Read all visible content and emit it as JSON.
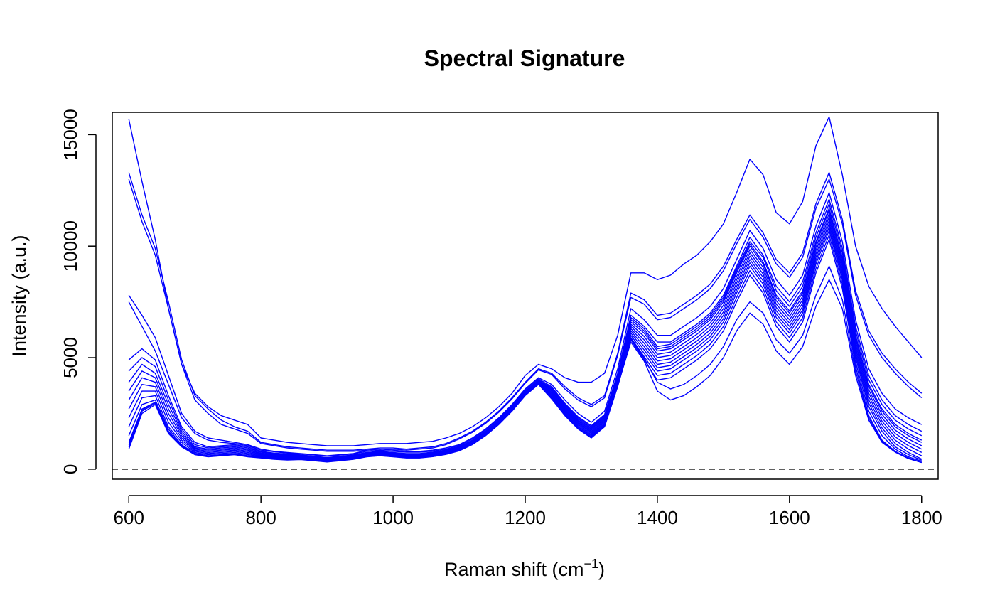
{
  "chart_data": {
    "type": "line",
    "title": "Spectral Signature",
    "xlabel_main": "Raman shift (cm",
    "xlabel_sup": "−1",
    "xlabel_close": ")",
    "ylabel": "Intensity (a.u.)",
    "xlim": [
      575,
      1825
    ],
    "ylim": [
      -450,
      16000
    ],
    "x_ticks": [
      600,
      800,
      1000,
      1200,
      1400,
      1600,
      1800
    ],
    "y_ticks": [
      0,
      5000,
      10000,
      15000
    ],
    "x_tick_labels": [
      "600",
      "800",
      "1000",
      "1200",
      "1400",
      "1600",
      "1800"
    ],
    "y_tick_labels": [
      "0",
      "5000",
      "10000",
      "15000"
    ],
    "reference_line": {
      "y": 0,
      "style": "dashed"
    },
    "line_color": "#0000ff",
    "grid": false,
    "legend": "none",
    "x": [
      600,
      620,
      640,
      660,
      680,
      700,
      720,
      740,
      760,
      780,
      800,
      820,
      840,
      860,
      880,
      900,
      920,
      940,
      960,
      980,
      1000,
      1020,
      1040,
      1060,
      1080,
      1100,
      1120,
      1140,
      1160,
      1180,
      1200,
      1220,
      1240,
      1260,
      1280,
      1300,
      1320,
      1340,
      1360,
      1380,
      1400,
      1420,
      1440,
      1460,
      1480,
      1500,
      1520,
      1540,
      1560,
      1580,
      1600,
      1620,
      1640,
      1660,
      1680,
      1700,
      1720,
      1740,
      1760,
      1780,
      1800
    ],
    "series": [
      {
        "values": [
          15700,
          12900,
          10300,
          7200,
          4700,
          3400,
          2800,
          2400,
          2200,
          2000,
          1400,
          1300,
          1200,
          1150,
          1100,
          1050,
          1050,
          1050,
          1100,
          1150,
          1150,
          1150,
          1200,
          1250,
          1400,
          1600,
          1900,
          2300,
          2800,
          3400,
          4200,
          4700,
          4500,
          4100,
          3900,
          3900,
          4300,
          6000,
          8800,
          8800,
          8500,
          8700,
          9200,
          9600,
          10200,
          11000,
          12400,
          13900,
          13200,
          11500,
          11000,
          12000,
          14500,
          15800,
          13200,
          10000,
          8200,
          7200,
          6400,
          5700,
          5000
        ]
      },
      {
        "values": [
          13300,
          11400,
          9900,
          7500,
          4900,
          3300,
          2700,
          2200,
          1900,
          1700,
          1200,
          1100,
          1000,
          950,
          900,
          850,
          850,
          850,
          900,
          950,
          950,
          900,
          950,
          1000,
          1150,
          1400,
          1700,
          2100,
          2600,
          3200,
          3900,
          4500,
          4300,
          3700,
          3200,
          2900,
          3300,
          5200,
          7900,
          7600,
          6900,
          7000,
          7400,
          7800,
          8300,
          9100,
          10300,
          11400,
          10600,
          9400,
          8800,
          9700,
          11900,
          13300,
          11200,
          8000,
          6200,
          5200,
          4500,
          3900,
          3400
        ]
      },
      {
        "values": [
          13000,
          11100,
          9600,
          7200,
          4700,
          3100,
          2500,
          2000,
          1800,
          1600,
          1150,
          1050,
          950,
          900,
          850,
          800,
          800,
          800,
          850,
          900,
          900,
          850,
          900,
          950,
          1100,
          1350,
          1650,
          2050,
          2550,
          3150,
          3850,
          4450,
          4250,
          3600,
          3100,
          2800,
          3200,
          5100,
          7700,
          7400,
          6700,
          6800,
          7200,
          7600,
          8100,
          8900,
          10100,
          11200,
          10400,
          9200,
          8600,
          9500,
          11700,
          13000,
          11000,
          7800,
          6000,
          5000,
          4300,
          3700,
          3200
        ]
      },
      {
        "values": [
          7800,
          6900,
          5900,
          4200,
          2500,
          1700,
          1400,
          1300,
          1200,
          1100,
          900,
          800,
          750,
          700,
          650,
          600,
          650,
          700,
          850,
          900,
          850,
          800,
          800,
          850,
          950,
          1100,
          1400,
          1800,
          2300,
          2900,
          3600,
          4100,
          3800,
          3100,
          2500,
          2100,
          2600,
          4500,
          7200,
          6700,
          6000,
          6000,
          6400,
          6800,
          7300,
          8100,
          9400,
          10700,
          9900,
          8500,
          7800,
          8700,
          10900,
          12400,
          10200,
          6700,
          4500,
          3400,
          2700,
          2300,
          2000
        ]
      },
      {
        "values": [
          7500,
          6400,
          5300,
          3800,
          2300,
          1600,
          1300,
          1200,
          1150,
          1050,
          850,
          780,
          720,
          680,
          630,
          580,
          630,
          680,
          800,
          850,
          800,
          760,
          760,
          810,
          900,
          1060,
          1350,
          1750,
          2250,
          2850,
          3550,
          4050,
          3700,
          2950,
          2350,
          1950,
          2450,
          4300,
          6900,
          6400,
          5700,
          5700,
          6100,
          6500,
          7000,
          7800,
          9100,
          10400,
          9600,
          8200,
          7500,
          8400,
          10600,
          12100,
          9900,
          6400,
          4200,
          3100,
          2400,
          2000,
          1700
        ]
      },
      {
        "values": [
          4900,
          5400,
          4900,
          3300,
          1900,
          1200,
          1000,
          1050,
          1100,
          1000,
          800,
          720,
          680,
          640,
          580,
          520,
          580,
          640,
          750,
          800,
          750,
          700,
          700,
          760,
          860,
          1020,
          1300,
          1700,
          2200,
          2800,
          3500,
          4000,
          3650,
          2900,
          2300,
          1900,
          2400,
          4200,
          6800,
          6300,
          5500,
          5600,
          6000,
          6400,
          6900,
          7700,
          9000,
          10200,
          9500,
          8000,
          7300,
          8200,
          10400,
          11900,
          9700,
          6200,
          4000,
          2900,
          2200,
          1800,
          1500
        ]
      },
      {
        "values": [
          4400,
          5000,
          4600,
          3100,
          1800,
          1100,
          950,
          1000,
          1050,
          950,
          760,
          690,
          650,
          610,
          560,
          500,
          560,
          620,
          730,
          780,
          730,
          680,
          680,
          740,
          840,
          1000,
          1280,
          1680,
          2180,
          2780,
          3480,
          3980,
          3600,
          2850,
          2250,
          1850,
          2350,
          4150,
          6700,
          6200,
          5400,
          5500,
          5900,
          6300,
          6800,
          7600,
          8900,
          10100,
          9300,
          7800,
          7100,
          8000,
          10200,
          11700,
          9500,
          6000,
          3800,
          2700,
          2000,
          1600,
          1300
        ]
      },
      {
        "values": [
          3900,
          4700,
          4300,
          2900,
          1700,
          1000,
          900,
          950,
          1000,
          900,
          720,
          660,
          620,
          590,
          540,
          480,
          540,
          600,
          710,
          760,
          710,
          660,
          660,
          720,
          820,
          980,
          1260,
          1660,
          2160,
          2760,
          3460,
          3960,
          3550,
          2800,
          2200,
          1800,
          2300,
          4100,
          6600,
          6100,
          5300,
          5400,
          5800,
          6200,
          6700,
          7500,
          8800,
          10000,
          9200,
          7700,
          7000,
          7900,
          10100,
          11600,
          9400,
          5900,
          3700,
          2600,
          1900,
          1500,
          1200
        ]
      },
      {
        "values": [
          3500,
          4400,
          4100,
          2700,
          1600,
          950,
          850,
          900,
          950,
          850,
          690,
          630,
          600,
          570,
          520,
          460,
          520,
          580,
          690,
          740,
          690,
          640,
          640,
          700,
          800,
          960,
          1240,
          1640,
          2140,
          2740,
          3440,
          3940,
          3500,
          2750,
          2150,
          1750,
          2250,
          4050,
          6500,
          5950,
          5150,
          5250,
          5650,
          6050,
          6550,
          7350,
          8650,
          9850,
          9050,
          7550,
          6850,
          7750,
          9950,
          11450,
          9250,
          5750,
          3550,
          2450,
          1750,
          1350,
          1050
        ]
      },
      {
        "values": [
          3100,
          4100,
          3900,
          2500,
          1500,
          900,
          800,
          850,
          900,
          800,
          660,
          600,
          570,
          550,
          500,
          440,
          500,
          560,
          670,
          720,
          670,
          620,
          620,
          680,
          780,
          940,
          1220,
          1620,
          2120,
          2720,
          3420,
          3920,
          3450,
          2700,
          2100,
          1700,
          2200,
          4000,
          6400,
          5800,
          5000,
          5100,
          5500,
          5900,
          6400,
          7200,
          8500,
          9700,
          8900,
          7400,
          6700,
          7600,
          9800,
          11300,
          9100,
          5600,
          3400,
          2300,
          1600,
          1200,
          900
        ]
      },
      {
        "values": [
          2700,
          3800,
          3700,
          2300,
          1400,
          850,
          750,
          800,
          850,
          750,
          630,
          570,
          540,
          530,
          480,
          420,
          480,
          540,
          650,
          700,
          650,
          600,
          600,
          660,
          760,
          920,
          1200,
          1600,
          2100,
          2700,
          3400,
          3900,
          3400,
          2650,
          2050,
          1650,
          2150,
          3950,
          6300,
          5650,
          4850,
          4950,
          5350,
          5750,
          6250,
          7050,
          8350,
          9550,
          8750,
          7250,
          6550,
          7450,
          9650,
          11150,
          8950,
          5450,
          3250,
          2150,
          1450,
          1050,
          750
        ]
      },
      {
        "values": [
          2300,
          3500,
          3500,
          2100,
          1300,
          800,
          700,
          750,
          800,
          700,
          600,
          540,
          510,
          510,
          460,
          400,
          460,
          520,
          630,
          680,
          630,
          580,
          580,
          640,
          740,
          900,
          1180,
          1580,
          2080,
          2680,
          3380,
          3880,
          3350,
          2600,
          2000,
          1600,
          2100,
          3900,
          6200,
          5500,
          4700,
          4800,
          5200,
          5600,
          6100,
          6900,
          8200,
          9400,
          8600,
          7100,
          6400,
          7300,
          9500,
          11000,
          8800,
          5300,
          3100,
          2000,
          1300,
          900,
          600
        ]
      },
      {
        "values": [
          1900,
          3200,
          3300,
          1900,
          1200,
          750,
          650,
          700,
          750,
          650,
          570,
          510,
          480,
          490,
          440,
          380,
          440,
          500,
          610,
          660,
          610,
          560,
          560,
          620,
          720,
          880,
          1160,
          1560,
          2060,
          2660,
          3360,
          3860,
          3300,
          2550,
          1950,
          1550,
          2050,
          3850,
          6100,
          5350,
          4550,
          4650,
          5050,
          5450,
          5950,
          6750,
          8050,
          9250,
          8450,
          6950,
          6250,
          7150,
          9350,
          10850,
          8650,
          5150,
          2950,
          1850,
          1150,
          750,
          450
        ]
      },
      {
        "values": [
          1500,
          2900,
          3100,
          1800,
          1100,
          700,
          600,
          650,
          700,
          600,
          540,
          480,
          450,
          470,
          420,
          360,
          420,
          480,
          590,
          640,
          590,
          540,
          540,
          600,
          700,
          860,
          1140,
          1540,
          2040,
          2640,
          3340,
          3840,
          3250,
          2500,
          1900,
          1500,
          2000,
          3800,
          6000,
          5200,
          4400,
          4500,
          4900,
          5300,
          5800,
          6600,
          7900,
          9100,
          8300,
          6800,
          6100,
          7000,
          9200,
          10700,
          8500,
          5000,
          2800,
          1700,
          1000,
          650,
          400
        ]
      },
      {
        "values": [
          1200,
          2700,
          3000,
          1700,
          1050,
          680,
          580,
          630,
          680,
          580,
          520,
          460,
          430,
          450,
          400,
          340,
          400,
          460,
          570,
          620,
          570,
          520,
          520,
          580,
          680,
          840,
          1120,
          1520,
          2020,
          2620,
          3320,
          3820,
          3200,
          2450,
          1850,
          1450,
          1950,
          3750,
          5900,
          5050,
          4200,
          4300,
          4700,
          5100,
          5600,
          6400,
          7700,
          8900,
          8100,
          6600,
          5900,
          6800,
          9000,
          10500,
          8300,
          4800,
          2600,
          1500,
          900,
          550,
          350
        ]
      },
      {
        "values": [
          900,
          2500,
          2900,
          1600,
          1000,
          650,
          550,
          600,
          650,
          550,
          500,
          440,
          410,
          430,
          380,
          320,
          380,
          440,
          550,
          600,
          550,
          500,
          500,
          560,
          660,
          820,
          1100,
          1500,
          2000,
          2600,
          3300,
          3800,
          3150,
          2400,
          1800,
          1400,
          1900,
          3700,
          5800,
          4900,
          4000,
          4100,
          4500,
          4900,
          5400,
          6200,
          7500,
          8700,
          7900,
          6400,
          5700,
          6600,
          8800,
          10300,
          8100,
          4600,
          2400,
          1300,
          800,
          500,
          300
        ]
      },
      {
        "values": [
          1000,
          2600,
          2950,
          1650,
          1020,
          660,
          560,
          610,
          660,
          560,
          510,
          450,
          420,
          440,
          390,
          330,
          390,
          450,
          560,
          610,
          560,
          510,
          510,
          570,
          670,
          830,
          1110,
          1510,
          2010,
          2610,
          3310,
          3810,
          3180,
          2430,
          1830,
          1430,
          1930,
          3730,
          5850,
          4980,
          3900,
          3600,
          3800,
          4200,
          4700,
          5500,
          6700,
          7500,
          7000,
          5800,
          5200,
          6000,
          7800,
          9100,
          7600,
          4400,
          2300,
          1250,
          780,
          480,
          300
        ]
      },
      {
        "values": [
          1100,
          2650,
          3000,
          1700,
          1040,
          670,
          570,
          620,
          670,
          570,
          520,
          460,
          430,
          450,
          400,
          340,
          400,
          460,
          570,
          620,
          570,
          520,
          520,
          580,
          680,
          840,
          1120,
          1520,
          2020,
          2620,
          3320,
          3820,
          3200,
          2450,
          1850,
          1450,
          1950,
          3750,
          5700,
          4850,
          3500,
          3100,
          3300,
          3700,
          4200,
          5000,
          6200,
          7000,
          6500,
          5300,
          4700,
          5500,
          7300,
          8500,
          7200,
          4200,
          2200,
          1200,
          760,
          470,
          300
        ]
      }
    ]
  }
}
